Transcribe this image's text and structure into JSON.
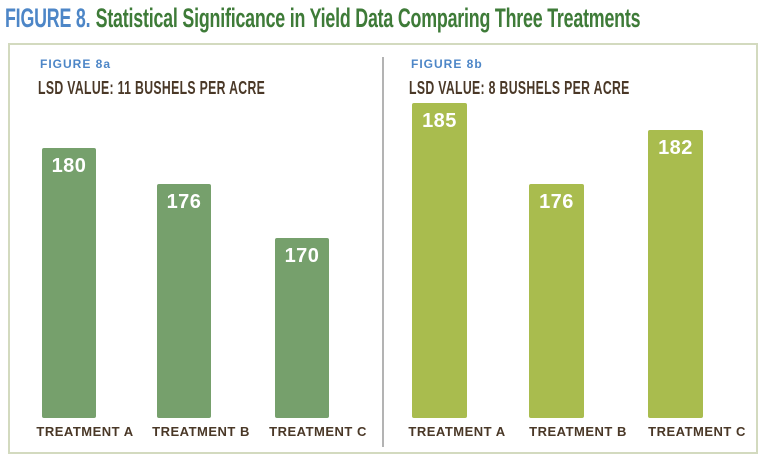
{
  "title": {
    "prefix": "FIGURE 8.",
    "text": "Statistical Significance in Yield Data Comparing Three Treatments"
  },
  "colors": {
    "figure_number_blue": "#4d86c7",
    "title_green": "#3e7b38",
    "panel_a_bar_green": "#76a06c",
    "panel_b_bar_olive": "#a9bc4e",
    "label_brown": "#4a3827",
    "box_border": "#d3dabf",
    "divider_gray": "#b3b3b3",
    "bar_value_text": "#ffffff"
  },
  "chart_data": [
    {
      "type": "bar",
      "panel_label": "FIGURE 8a",
      "lsd_label": "LSD VALUE: 11 BUSHELS PER ACRE",
      "categories": [
        "TREATMENT A",
        "TREATMENT B",
        "TREATMENT C"
      ],
      "values": [
        180,
        176,
        170
      ],
      "bar_color": "#76a06c",
      "ylim": [
        150,
        190
      ],
      "grid": false,
      "legend": false,
      "value_labels": "inside-top, white"
    },
    {
      "type": "bar",
      "panel_label": "FIGURE 8b",
      "lsd_label": "LSD VALUE: 8 BUSHELS PER ACRE",
      "categories": [
        "TREATMENT A",
        "TREATMENT B",
        "TREATMENT C"
      ],
      "values": [
        185,
        176,
        182
      ],
      "bar_color": "#a9bc4e",
      "ylim": [
        150,
        190
      ],
      "grid": false,
      "legend": false,
      "value_labels": "inside-top, white"
    }
  ]
}
